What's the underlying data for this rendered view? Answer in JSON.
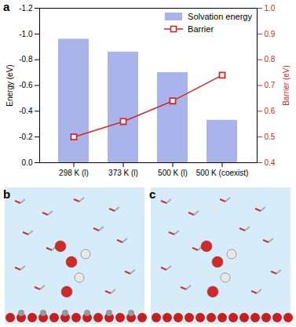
{
  "chart_data": {
    "type": "bar",
    "panel_label": "a",
    "categories": [
      "298 K (l)",
      "373 K (l)",
      "500 K (l)",
      "500 K (coexist)"
    ],
    "series": [
      {
        "name": "Solvation energy",
        "type": "bar",
        "color": "#a9b5ea",
        "values": [
          -0.96,
          -0.86,
          -0.7,
          -0.33
        ]
      },
      {
        "name": "Barrier",
        "type": "line",
        "color": "#d62728",
        "marker": "square",
        "axis": "y2",
        "values": [
          0.5,
          0.56,
          0.64,
          0.74
        ]
      }
    ],
    "ylabel": "Energy (eV)",
    "y2label": "Barrier (eV)",
    "ylim": [
      0,
      -1.2
    ],
    "yticks": [
      {
        "value": 0,
        "label": "0.0"
      },
      {
        "value": -0.2,
        "label": "-0.2"
      },
      {
        "value": -0.4,
        "label": "-0.4"
      },
      {
        "value": -0.6,
        "label": "-0.6"
      },
      {
        "value": -0.8,
        "label": "-0.8"
      },
      {
        "value": -1.0,
        "label": "-1.0"
      },
      {
        "value": -1.2,
        "label": "-1.2"
      }
    ],
    "y2lim": [
      0.4,
      1.0
    ],
    "y2ticks": [
      {
        "value": 0.4,
        "label": "0.4"
      },
      {
        "value": 0.5,
        "label": "0.5"
      },
      {
        "value": 0.6,
        "label": "0.6"
      },
      {
        "value": 0.7,
        "label": "0.7"
      },
      {
        "value": 0.8,
        "label": "0.8"
      },
      {
        "value": 0.9,
        "label": "0.9"
      },
      {
        "value": 1.0,
        "label": "1.0"
      }
    ],
    "legend": "top-right"
  },
  "images": [
    {
      "panel_label": "b"
    },
    {
      "panel_label": "c"
    }
  ]
}
